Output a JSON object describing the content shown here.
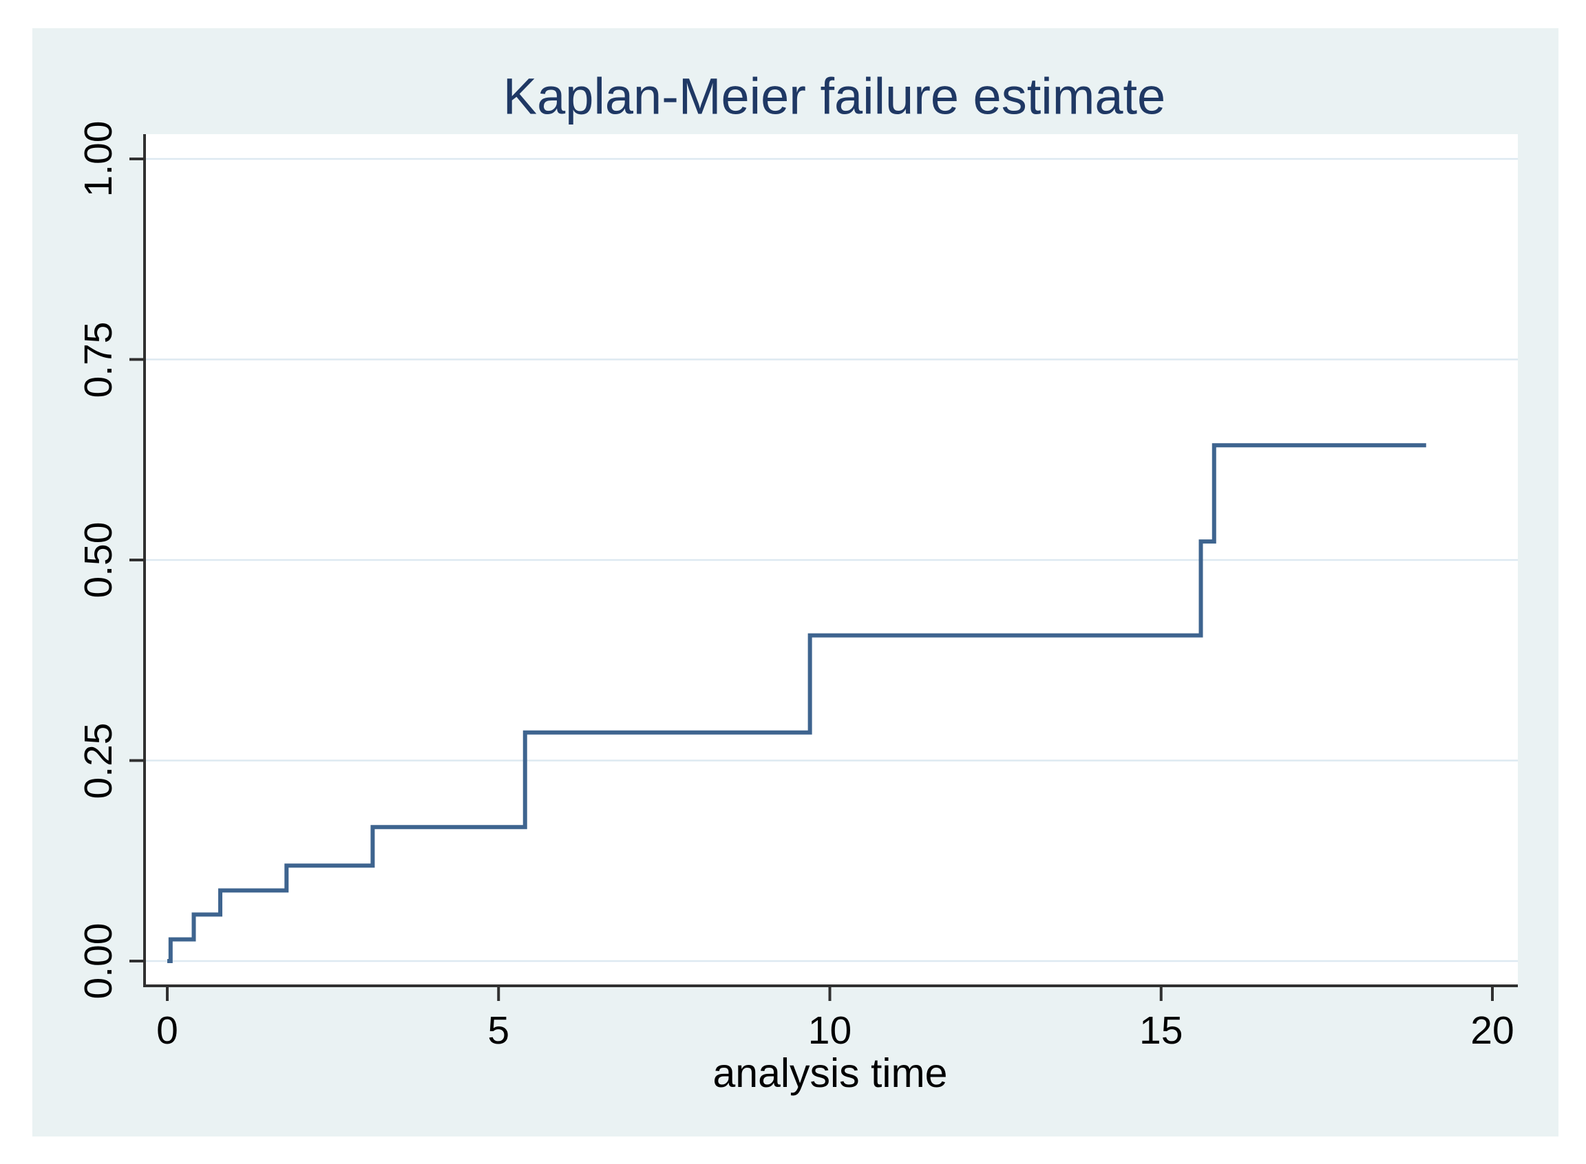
{
  "title": "Kaplan-Meier failure estimate",
  "x_axis": {
    "label": "analysis time",
    "tick_labels": [
      "0",
      "5",
      "10",
      "15",
      "20"
    ],
    "tick_values": [
      0,
      5,
      10,
      15,
      20
    ],
    "range": [
      0,
      20
    ]
  },
  "y_axis": {
    "label": "",
    "tick_labels": [
      "0.00",
      "0.25",
      "0.50",
      "0.75",
      "1.00"
    ],
    "tick_values": [
      0,
      0.25,
      0.5,
      0.75,
      1
    ],
    "range": [
      0,
      1
    ]
  },
  "colors": {
    "page_margin": "#FFFFFF",
    "graph_background": "#EAF2F3",
    "plot_background": "#FFFFFF",
    "gridline": "#DDE9F1",
    "axis": "#303030",
    "tick_label": "#000000",
    "title": "#1F3864",
    "curve": "#3E648F"
  },
  "chart_data": {
    "type": "line",
    "line_style": "step-post",
    "title": "Kaplan-Meier failure estimate",
    "xlabel": "analysis time",
    "ylabel": "",
    "xlim": [
      0,
      20
    ],
    "ylim": [
      0,
      1
    ],
    "grid": true,
    "legend": "none",
    "series": [
      {
        "name": "Kaplan-Meier failure estimate",
        "start": {
          "t": 0,
          "p": 0
        },
        "jumps": [
          {
            "t": 0.05,
            "p": 0.027
          },
          {
            "t": 0.4,
            "p": 0.058
          },
          {
            "t": 0.8,
            "p": 0.088
          },
          {
            "t": 1.8,
            "p": 0.119
          },
          {
            "t": 3.1,
            "p": 0.167
          },
          {
            "t": 5.4,
            "p": 0.285
          },
          {
            "t": 9.7,
            "p": 0.406
          },
          {
            "t": 15.6,
            "p": 0.523
          },
          {
            "t": 15.8,
            "p": 0.643
          }
        ],
        "end_t": 19
      }
    ]
  }
}
